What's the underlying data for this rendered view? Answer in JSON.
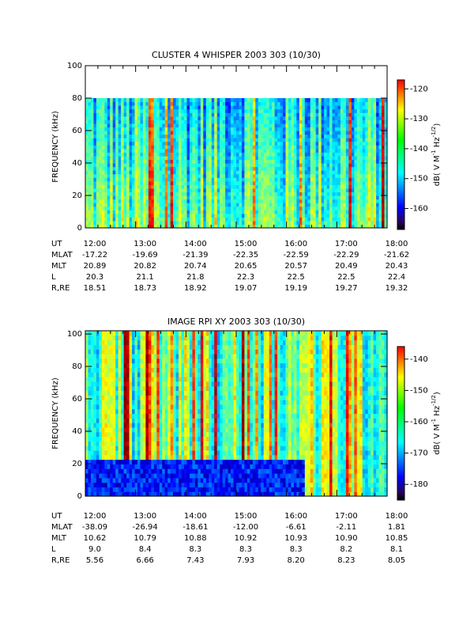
{
  "chart_data": [
    {
      "type": "spectrogram",
      "title": "CLUSTER 4 WHISPER 2003 303 (10/30)",
      "ylabel": "FREQUENCY (kHz)",
      "ylim": [
        0,
        100
      ],
      "yticks": [
        0,
        20,
        40,
        60,
        80,
        100
      ],
      "colorbar_label": [
        "dB( V M",
        "-1",
        " Hz",
        "-1/2",
        ")"
      ],
      "clim": [
        -167,
        -117
      ],
      "cticks": [
        -120,
        -130,
        -140,
        -150,
        -160
      ],
      "ephemeris_label": "UT",
      "categories": [
        "12:00",
        "13:00",
        "14:00",
        "15:00",
        "16:00",
        "17:00",
        "18:00"
      ],
      "ephemeris": [
        {
          "name": "MLAT",
          "values": [
            "-17.22",
            "-19.69",
            "-21.39",
            "-22.35",
            "-22.59",
            "-22.29",
            "-21.62"
          ]
        },
        {
          "name": "MLT",
          "values": [
            "20.89",
            "20.82",
            "20.74",
            "20.65",
            "20.57",
            "20.49",
            "20.43"
          ]
        },
        {
          "name": "L",
          "values": [
            "20.3",
            "21.1",
            "21.8",
            "22.3",
            "22.5",
            "22.5",
            "22.4"
          ]
        },
        {
          "name": "R,RE",
          "values": [
            "18.51",
            "18.73",
            "18.92",
            "19.07",
            "19.19",
            "19.27",
            "19.32"
          ]
        }
      ]
    },
    {
      "type": "spectrogram",
      "title": "IMAGE RPI XY 2003 303 (10/30)",
      "ylabel": "FREQUENCY (kHz)",
      "ylim": [
        0,
        102
      ],
      "yticks": [
        0,
        20,
        40,
        60,
        80,
        100
      ],
      "colorbar_label": [
        "dB( V M",
        "-1",
        " Hz",
        "-1/2",
        ")"
      ],
      "clim": [
        -185,
        -136
      ],
      "cticks": [
        -140,
        -150,
        -160,
        -170,
        -180
      ],
      "ephemeris_label": "UT",
      "categories": [
        "12:00",
        "13:00",
        "14:00",
        "15:00",
        "16:00",
        "17:00",
        "18:00"
      ],
      "ephemeris": [
        {
          "name": "MLAT",
          "values": [
            "-38.09",
            "-26.94",
            "-18.61",
            "-12.00",
            "-6.61",
            "-2.11",
            "1.81"
          ]
        },
        {
          "name": "MLT",
          "values": [
            "10.62",
            "10.79",
            "10.88",
            "10.92",
            "10.93",
            "10.90",
            "10.85"
          ]
        },
        {
          "name": "L",
          "values": [
            "9.0",
            "8.4",
            "8.3",
            "8.3",
            "8.3",
            "8.2",
            "8.1"
          ]
        },
        {
          "name": "R,RE",
          "values": [
            "5.56",
            "6.66",
            "7.43",
            "7.93",
            "8.20",
            "8.23",
            "8.05"
          ]
        }
      ]
    }
  ]
}
